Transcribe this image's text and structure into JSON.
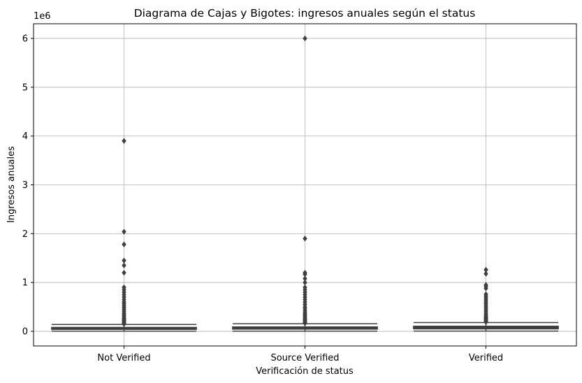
{
  "chart_data": {
    "type": "box",
    "title": "Diagrama de Cajas y Bigotes: ingresos anuales según el status",
    "xlabel": "Verificación de status",
    "ylabel": "Ingresos anuales",
    "y_scale_label": "1e6",
    "ylim": [
      -300000,
      6300000
    ],
    "y_ticks": [
      0,
      1000000,
      2000000,
      3000000,
      4000000,
      5000000,
      6000000
    ],
    "y_tick_labels": [
      "0",
      "1",
      "2",
      "3",
      "4",
      "5",
      "6"
    ],
    "grid": true,
    "categories": [
      "Not Verified",
      "Source Verified",
      "Verified"
    ],
    "colors": {
      "box": "#3f3f3f",
      "whisker": "#3f3f3f",
      "outlier": "#3f3f3f",
      "grid": "#b0b0b0",
      "spine": "#000000"
    },
    "series": [
      {
        "category": "Not Verified",
        "min": 3000,
        "q1": 40000,
        "median": 57000,
        "q3": 80000,
        "max": 140000,
        "outliers": [
          150000,
          160000,
          175000,
          190000,
          210000,
          230000,
          250000,
          270000,
          300000,
          330000,
          360000,
          400000,
          440000,
          480000,
          520000,
          560000,
          600000,
          650000,
          700000,
          750000,
          800000,
          850000,
          900000,
          1200000,
          1350000,
          1450000,
          1780000,
          2040000,
          3900000
        ]
      },
      {
        "category": "Source Verified",
        "min": 3000,
        "q1": 45000,
        "median": 63000,
        "q3": 90000,
        "max": 155000,
        "outliers": [
          165000,
          180000,
          200000,
          220000,
          240000,
          260000,
          290000,
          320000,
          350000,
          380000,
          420000,
          460000,
          500000,
          550000,
          600000,
          650000,
          700000,
          750000,
          800000,
          850000,
          900000,
          1000000,
          1080000,
          1170000,
          1200000,
          1900000,
          6000000
        ]
      },
      {
        "category": "Verified",
        "min": 4000,
        "q1": 50000,
        "median": 70000,
        "q3": 105000,
        "max": 180000,
        "outliers": [
          190000,
          205000,
          220000,
          240000,
          260000,
          280000,
          300000,
          330000,
          360000,
          400000,
          440000,
          480000,
          520000,
          560000,
          600000,
          640000,
          680000,
          720000,
          760000,
          880000,
          920000,
          950000,
          1180000,
          1260000
        ]
      }
    ]
  }
}
